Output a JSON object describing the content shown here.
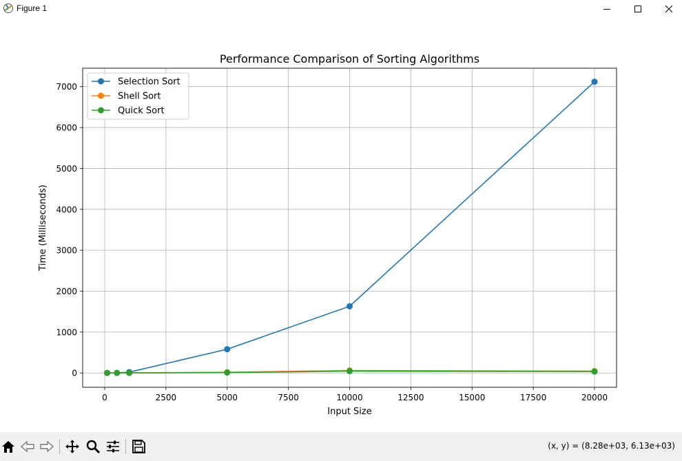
{
  "window": {
    "title": "Figure 1",
    "icons": [
      "matplotlib-logo-icon",
      "minimize-icon",
      "maximize-icon",
      "close-icon"
    ]
  },
  "toolbar": {
    "tools": [
      "home-icon",
      "back-arrow-icon",
      "forward-arrow-icon",
      "pan-icon",
      "zoom-icon",
      "configure-subplots-icon",
      "save-icon"
    ],
    "coord_readout": "(x, y) = (8.28e+03, 6.13e+03)"
  },
  "chart_data": {
    "type": "line",
    "title": "Performance Comparison of Sorting Algorithms",
    "xlabel": "Input Size",
    "ylabel": "Time (Milliseconds)",
    "xlim": [
      -900,
      20900
    ],
    "ylim": [
      -350,
      7450
    ],
    "xticks": [
      0,
      2500,
      5000,
      7500,
      10000,
      12500,
      15000,
      17500,
      20000
    ],
    "yticks": [
      0,
      1000,
      2000,
      3000,
      4000,
      5000,
      6000,
      7000
    ],
    "grid": true,
    "legend_position": "upper-left",
    "marker": "circle",
    "x": [
      100,
      500,
      1000,
      5000,
      10000,
      20000
    ],
    "series": [
      {
        "name": "Selection Sort",
        "color": "#1f77b4",
        "values": [
          0,
          1,
          20,
          580,
          1630,
          7120
        ]
      },
      {
        "name": "Shell Sort",
        "color": "#ff7f0e",
        "values": [
          0,
          0,
          2,
          18,
          60,
          45
        ]
      },
      {
        "name": "Quick Sort",
        "color": "#2ca02c",
        "values": [
          0,
          0,
          1,
          10,
          45,
          35
        ]
      }
    ]
  }
}
